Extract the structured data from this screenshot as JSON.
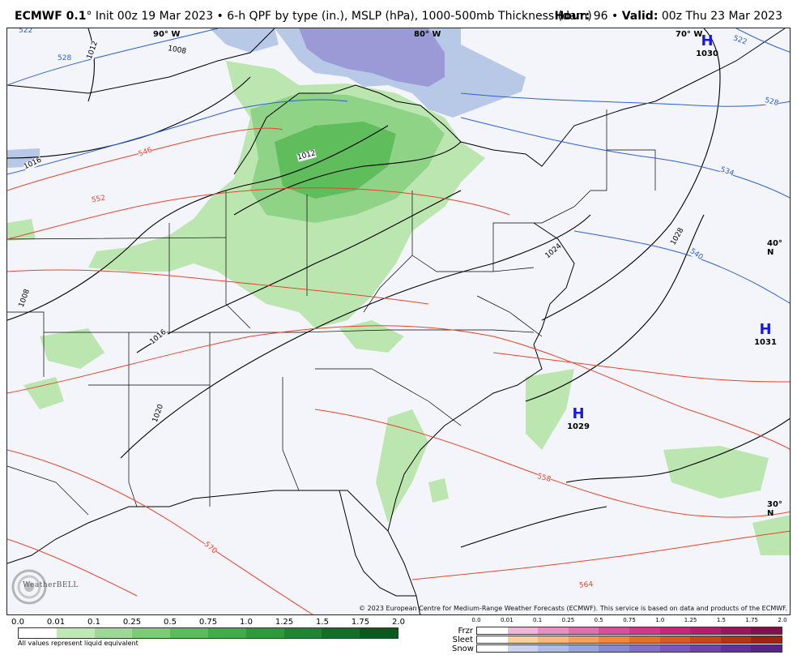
{
  "header": {
    "model": "ECMWF 0.1",
    "degree": "°",
    "description": " Init 00z 19 Mar 2023 • 6-h QPF by type (in.), MSLP (hPa), 1000-500mb Thickness (dam)",
    "hour_label": "Hour:",
    "hour_value": " 96 • ",
    "valid_label": "Valid:",
    "valid_value": " 00z Thu 23 Mar 2023"
  },
  "map": {
    "longitudes": [
      "90° W",
      "80° W",
      "70° W"
    ],
    "latitudes": [
      "40° N",
      "30° N"
    ],
    "highs": [
      {
        "symbol": "H",
        "value": "1030"
      },
      {
        "symbol": "H",
        "value": "1031"
      },
      {
        "symbol": "H",
        "value": "1029"
      }
    ],
    "isobar_labels": [
      "1008",
      "1012",
      "1016",
      "1012",
      "1008",
      "1016",
      "1020",
      "1024",
      "1028"
    ],
    "thickness_labels_blue": [
      "522",
      "528",
      "522",
      "528",
      "534",
      "540"
    ],
    "thickness_labels_red": [
      "546",
      "552",
      "558",
      "570",
      "564"
    ],
    "colors": {
      "background": "#f3f5fb",
      "precip_light": "#bce6b0",
      "precip_mid": "#8fd386",
      "precip_heavy": "#5fbd5c",
      "snow": "#b7c9e6",
      "snow_dark": "#8f8fd0",
      "isobar": "#000000",
      "thickness_cold": "#2b5fd9",
      "thickness_warm": "#e8432a",
      "high_color": "#1a1ad6"
    }
  },
  "copyright": "© 2023 European Centre for Medium-Range Weather Forecasts (ECMWF). This service is based on data and products of the ECMWF.",
  "logo_text": "WeatherBELL",
  "legend": {
    "ticks": [
      "0.0",
      "0.01",
      "0.1",
      "0.25",
      "0.5",
      "0.75",
      "1.0",
      "1.25",
      "1.5",
      "1.75",
      "2.0"
    ],
    "colors": [
      "#ffffff",
      "#bfe8b4",
      "#9ed896",
      "#7ccb76",
      "#5cbc5c",
      "#42ab4a",
      "#2f9a3b",
      "#1f8531",
      "#136f27",
      "#0a5a1e"
    ],
    "note": "All values represent liquid equivalent",
    "ptype_ticks": [
      "0.0",
      "0.01",
      "0.1",
      "0.25",
      "0.5",
      "0.75",
      "1.0",
      "1.25",
      "1.5",
      "1.75",
      "2.0"
    ],
    "ptype_rows": [
      {
        "name": "Frzr",
        "colors": [
          "#ffffff",
          "#f0b8d8",
          "#e890c4",
          "#e070b0",
          "#d8509c",
          "#d03a8c",
          "#c02a7c",
          "#b01e6c",
          "#9a165c",
          "#820e4c"
        ]
      },
      {
        "name": "Sleet",
        "colors": [
          "#ffffff",
          "#f8d0a0",
          "#f4b880",
          "#f0a060",
          "#ec8840",
          "#e47030",
          "#d85a26",
          "#c8461e",
          "#b43418",
          "#9c2412"
        ]
      },
      {
        "name": "Snow",
        "colors": [
          "#ffffff",
          "#c8d4f0",
          "#b0bce8",
          "#98a4de",
          "#8a8ad4",
          "#8070c8",
          "#7858bc",
          "#6e44ac",
          "#62329a",
          "#552488"
        ]
      }
    ]
  }
}
